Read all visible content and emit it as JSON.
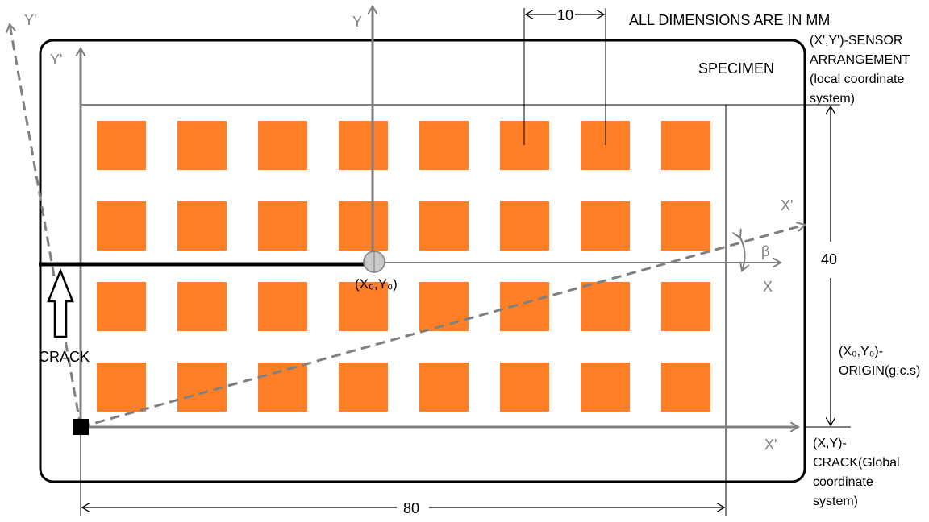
{
  "title_note": "ALL DIMENSIONS ARE IN MM",
  "specimen_label": "SPECIMEN",
  "sensor_note": [
    "(X',Y')-SENSOR",
    "ARRANGEMENT",
    "(local coordinate",
    "system)"
  ],
  "origin_note": [
    "(X₀,Y₀)-",
    "ORIGIN(g.c.s)"
  ],
  "crack_note": [
    "(X,Y)-",
    "CRACK(Global",
    "coordinate",
    "system)"
  ],
  "crack_label": "CRACK",
  "dimensions": {
    "spacing": "10",
    "height": "40",
    "width": "80"
  },
  "axes": {
    "y_global": "Y",
    "x_global": "X",
    "y_prime_top": "Y'",
    "y_prime_left": "Y'",
    "x_prime_rot": "X'",
    "x_prime_bottom": "X'",
    "beta": "β",
    "origin_point": "(X₀,Y₀)"
  },
  "sensor_grid": {
    "rows": 4,
    "cols": 8,
    "color": "#ff7f27"
  },
  "colors": {
    "axis": "#808080",
    "dashed": "#808080",
    "crack": "#000000",
    "sensor": "#ff7f27"
  }
}
